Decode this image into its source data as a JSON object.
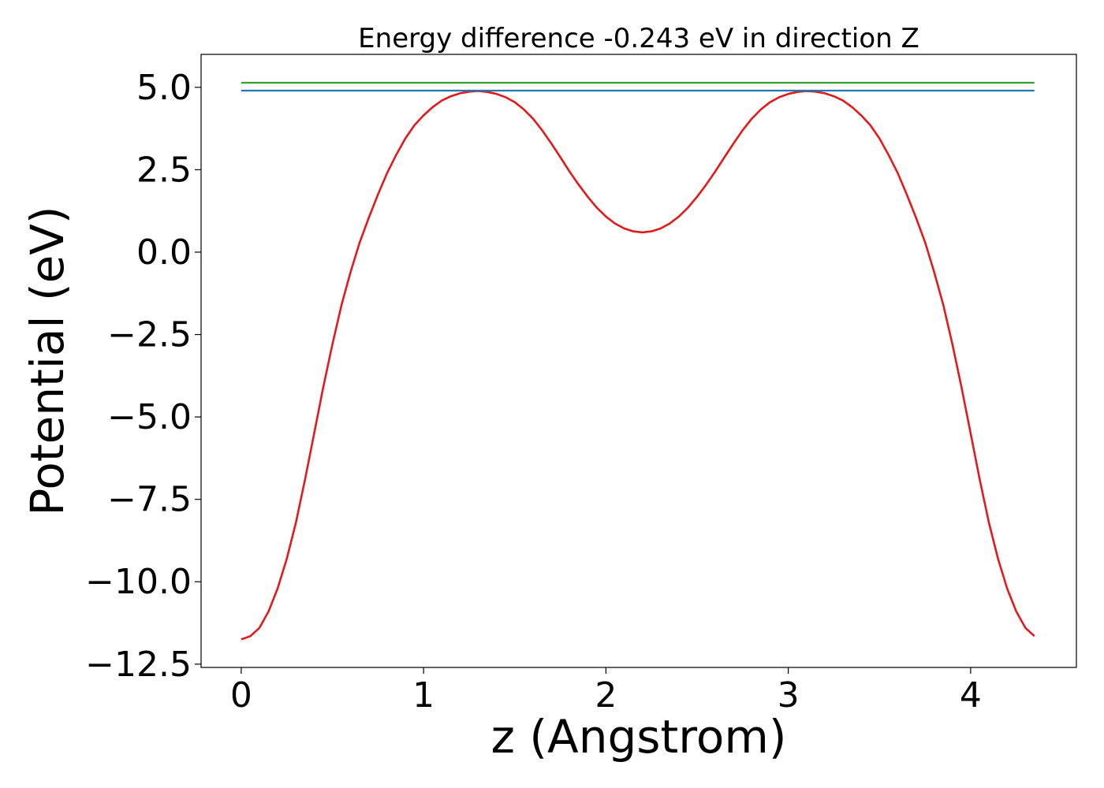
{
  "chart_data": {
    "type": "line",
    "title": "Energy difference -0.243 eV in direction Z",
    "xlabel": "z (Angstrom)",
    "ylabel": "Potential (eV)",
    "xlim": [
      -0.22,
      4.58
    ],
    "ylim": [
      -12.6,
      6.0
    ],
    "xticks": [
      0,
      1,
      2,
      3,
      4
    ],
    "xtick_labels": [
      "0",
      "1",
      "2",
      "3",
      "4"
    ],
    "yticks": [
      5.0,
      2.5,
      0.0,
      -2.5,
      -5.0,
      -7.5,
      -10.0,
      -12.5
    ],
    "ytick_labels": [
      "5.0",
      "2.5",
      "0.0",
      "−2.5",
      "−5.0",
      "−7.5",
      "−10.0",
      "−12.5"
    ],
    "grid": false,
    "colors": {
      "potential": "#e31a1c",
      "level_blue": "#1f78b4",
      "level_green": "#33a02c"
    },
    "series": [
      {
        "color": "#e31a1c",
        "x": [
          0.0,
          0.05,
          0.1,
          0.15,
          0.2,
          0.25,
          0.3,
          0.35,
          0.4,
          0.45,
          0.5,
          0.55,
          0.6,
          0.65,
          0.7,
          0.75,
          0.8,
          0.85,
          0.9,
          0.95,
          1.0,
          1.05,
          1.1,
          1.15,
          1.2,
          1.25,
          1.3,
          1.35,
          1.4,
          1.45,
          1.5,
          1.55,
          1.6,
          1.65,
          1.7,
          1.75,
          1.8,
          1.85,
          1.9,
          1.95,
          2.0,
          2.05,
          2.1,
          2.15,
          2.2,
          2.25,
          2.3,
          2.35,
          2.4,
          2.45,
          2.5,
          2.55,
          2.6,
          2.65,
          2.7,
          2.75,
          2.8,
          2.85,
          2.9,
          2.95,
          3.0,
          3.05,
          3.1,
          3.15,
          3.2,
          3.25,
          3.3,
          3.35,
          3.4,
          3.45,
          3.5,
          3.55,
          3.6,
          3.65,
          3.7,
          3.75,
          3.8,
          3.85,
          3.9,
          3.95,
          4.0,
          4.05,
          4.1,
          4.15,
          4.2,
          4.25,
          4.3,
          4.35
        ],
        "y": [
          -11.75,
          -11.65,
          -11.4,
          -10.9,
          -10.2,
          -9.3,
          -8.2,
          -6.9,
          -5.5,
          -4.1,
          -2.8,
          -1.6,
          -0.6,
          0.3,
          1.05,
          1.75,
          2.4,
          2.95,
          3.45,
          3.85,
          4.15,
          4.4,
          4.6,
          4.73,
          4.82,
          4.87,
          4.89,
          4.86,
          4.8,
          4.7,
          4.55,
          4.33,
          4.05,
          3.7,
          3.3,
          2.88,
          2.45,
          2.05,
          1.68,
          1.35,
          1.08,
          0.87,
          0.72,
          0.63,
          0.6,
          0.63,
          0.72,
          0.87,
          1.08,
          1.35,
          1.68,
          2.05,
          2.45,
          2.88,
          3.3,
          3.7,
          4.05,
          4.33,
          4.55,
          4.7,
          4.8,
          4.86,
          4.89,
          4.87,
          4.82,
          4.73,
          4.6,
          4.4,
          4.15,
          3.85,
          3.45,
          2.95,
          2.4,
          1.75,
          1.05,
          0.3,
          -0.6,
          -1.6,
          -2.8,
          -4.1,
          -5.5,
          -6.9,
          -8.2,
          -9.3,
          -10.2,
          -10.9,
          -11.4,
          -11.65
        ]
      },
      {
        "color": "#1f78b4",
        "x": [
          0.0,
          4.35
        ],
        "y": [
          4.9,
          4.9
        ]
      },
      {
        "color": "#33a02c",
        "x": [
          0.0,
          4.35
        ],
        "y": [
          5.14,
          5.14
        ]
      }
    ]
  }
}
